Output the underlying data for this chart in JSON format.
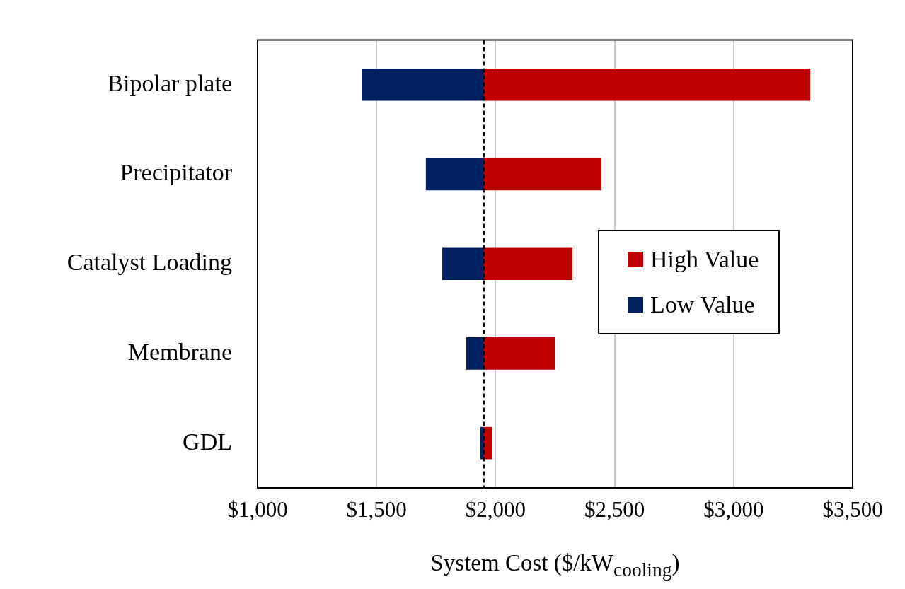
{
  "chart_data": {
    "type": "bar",
    "orientation": "horizontal",
    "xlabel": "System Cost ($/kW$_{cooling}$)",
    "categories": [
      "Bipolar plate",
      "Precipitator",
      "Catalyst Loading",
      "Membrane",
      "GDL"
    ],
    "series": [
      {
        "name": "High Value",
        "color": "#c00000",
        "base": [
          1951,
          1951,
          1951,
          1951,
          1951
        ],
        "values": [
          1371,
          494,
          372,
          298,
          36
        ]
      },
      {
        "name": "Low Value",
        "color": "#002060",
        "base": [
          1951,
          1951,
          1951,
          1951,
          1951
        ],
        "values": [
          -511,
          -244,
          -175,
          -74,
          -15
        ]
      }
    ],
    "xlim": [
      1000,
      3500
    ],
    "xticks": [
      {
        "value": 1000,
        "label": "$1,000"
      },
      {
        "value": 1500,
        "label": "$1,500"
      },
      {
        "value": 2000,
        "label": "$2,000"
      },
      {
        "value": 2500,
        "label": "$2,500"
      },
      {
        "value": 3000,
        "label": "$3,000"
      },
      {
        "value": 3500,
        "label": "$3,500"
      }
    ],
    "ref_lines": [
      {
        "axis": "x",
        "value": 1951,
        "color": "#000000",
        "line_style": "dashed"
      }
    ],
    "grid": "x",
    "legend": "right"
  }
}
